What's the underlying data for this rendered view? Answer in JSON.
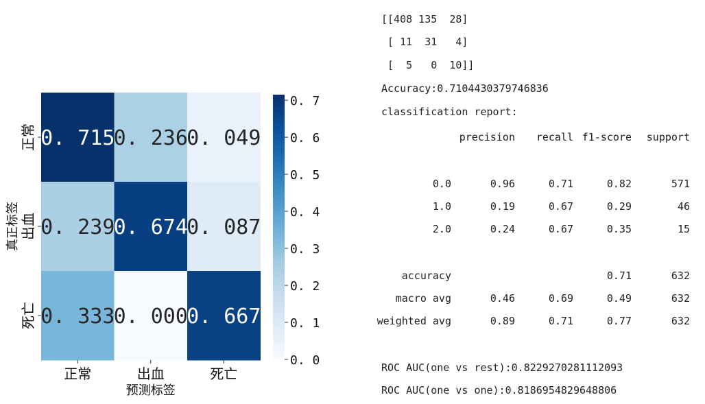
{
  "chart_data": {
    "type": "heatmap",
    "xlabel": "预测标签",
    "ylabel": "真正标签",
    "x_categories": [
      "正常",
      "出血",
      "死亡"
    ],
    "y_categories": [
      "正常",
      "出血",
      "死亡"
    ],
    "values": [
      [
        0.715,
        0.236,
        0.049
      ],
      [
        0.239,
        0.674,
        0.087
      ],
      [
        0.333,
        0.0,
        0.667
      ]
    ],
    "cell_labels": [
      [
        "0.715",
        "0.236",
        "0.049"
      ],
      [
        "0.239",
        "0.674",
        "0.087"
      ],
      [
        "0.333",
        "0.000",
        "0.667"
      ]
    ],
    "colorbar": {
      "range": [
        0,
        0.715
      ],
      "ticks": [
        "0.0",
        "0.1",
        "0.2",
        "0.3",
        "0.4",
        "0.5",
        "0.6",
        "0.7"
      ],
      "colormap": "Blues",
      "colors": {
        "low": "#f7fbff",
        "high": "#08306b"
      }
    }
  },
  "report": {
    "matrix": [
      "[[408 135  28]",
      " [ 11  31   4]",
      " [  5   0  10]]"
    ],
    "accuracy_line": "Accuracy:0.7104430379746836",
    "report_title": "classification report:",
    "headers": [
      "precision",
      "recall",
      "f1-score",
      "support"
    ],
    "rows": [
      {
        "label": "0.0",
        "precision": "0.96",
        "recall": "0.71",
        "f1": "0.82",
        "support": "571"
      },
      {
        "label": "1.0",
        "precision": "0.19",
        "recall": "0.67",
        "f1": "0.29",
        "support": "46"
      },
      {
        "label": "2.0",
        "precision": "0.24",
        "recall": "0.67",
        "f1": "0.35",
        "support": "15"
      }
    ],
    "summary": [
      {
        "label": "accuracy",
        "precision": "",
        "recall": "",
        "f1": "0.71",
        "support": "632"
      },
      {
        "label": "macro avg",
        "precision": "0.46",
        "recall": "0.69",
        "f1": "0.49",
        "support": "632"
      },
      {
        "label": "weighted avg",
        "precision": "0.89",
        "recall": "0.71",
        "f1": "0.77",
        "support": "632"
      }
    ],
    "roc_ovr": "ROC AUC(one vs rest):0.8229270281112093",
    "roc_ovo": "ROC AUC(one vs one):0.8186954829648806"
  }
}
